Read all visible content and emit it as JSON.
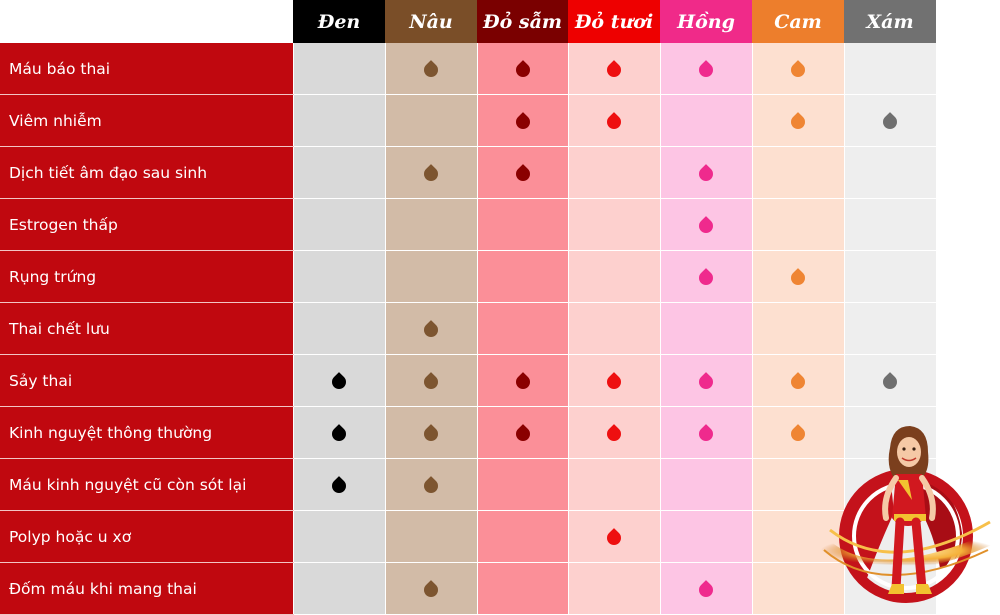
{
  "header": {
    "corner": ""
  },
  "columns": [
    {
      "key": "den",
      "label": "Đen",
      "head_color": "#000000",
      "body_color": "#d9d9d9",
      "drop_color": "#000000"
    },
    {
      "key": "nau",
      "label": "Nâu",
      "head_color": "#7a4e28",
      "body_color": "#d2bba7",
      "drop_color": "#7d5530"
    },
    {
      "key": "do_sam",
      "label": "Đỏ sẫm",
      "head_color": "#7a0000",
      "body_color": "#fb8f98",
      "drop_color": "#8a0000"
    },
    {
      "key": "do_tuoi",
      "label": "Đỏ tươi",
      "head_color": "#ee0000",
      "body_color": "#fdd0ce",
      "drop_color": "#ee0f10"
    },
    {
      "key": "hong",
      "label": "Hồng",
      "head_color": "#f02a89",
      "body_color": "#fdc5e4",
      "drop_color": "#ef2a8d"
    },
    {
      "key": "cam",
      "label": "Cam",
      "head_color": "#ed7e2c",
      "body_color": "#fde0d0",
      "drop_color": "#ef8533"
    },
    {
      "key": "xam",
      "label": "Xám",
      "head_color": "#717171",
      "body_color": "#eeeeee",
      "drop_color": "#6f6f6f"
    }
  ],
  "rows": [
    {
      "label": "Máu báo thai",
      "drops": [
        "nau",
        "do_sam",
        "do_tuoi",
        "hong",
        "cam"
      ]
    },
    {
      "label": "Viêm nhiễm",
      "drops": [
        "do_sam",
        "do_tuoi",
        "cam",
        "xam"
      ]
    },
    {
      "label": "Dịch tiết âm đạo sau sinh",
      "drops": [
        "nau",
        "do_sam",
        "hong"
      ]
    },
    {
      "label": "Estrogen thấp",
      "drops": [
        "hong"
      ]
    },
    {
      "label": "Rụng trứng",
      "drops": [
        "hong",
        "cam"
      ]
    },
    {
      "label": "Thai chết lưu",
      "drops": [
        "nau"
      ]
    },
    {
      "label": "Sảy thai",
      "drops": [
        "den",
        "nau",
        "do_sam",
        "do_tuoi",
        "hong",
        "cam",
        "xam"
      ]
    },
    {
      "label": "Kinh nguyệt thông thường",
      "drops": [
        "den",
        "nau",
        "do_sam",
        "do_tuoi",
        "hong",
        "cam"
      ]
    },
    {
      "label": "Máu kinh nguyệt cũ còn sót lại",
      "drops": [
        "den",
        "nau"
      ]
    },
    {
      "label": "Polyp hoặc u xơ",
      "drops": [
        "do_tuoi"
      ]
    },
    {
      "label": "Đốm máu khi mang thai",
      "drops": [
        "nau",
        "hong"
      ]
    }
  ],
  "icons": {
    "drop": "blood-drop-icon",
    "mascot": "superhero-mascot"
  }
}
